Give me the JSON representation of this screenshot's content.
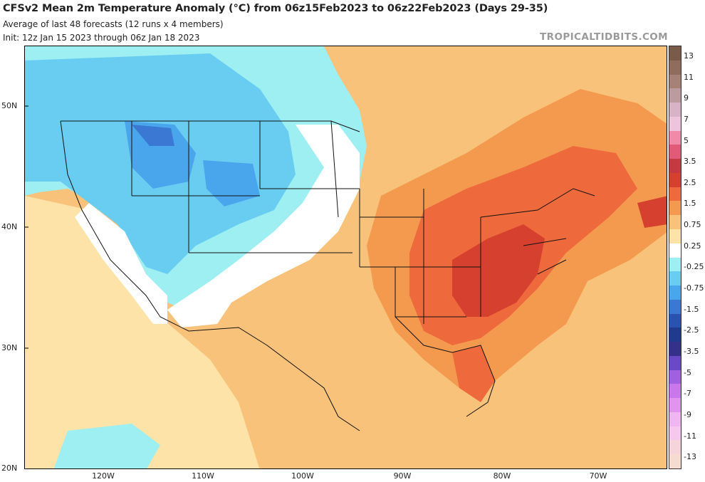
{
  "header": {
    "title": "CFSv2 Mean 2m Temperature Anomaly (°C) from 06z15Feb2023 to 06z22Feb2023 (Days 29-35)",
    "subtitle": "Average of last 48 forecasts (12 runs x 4 members)",
    "init": "Init: 12z Jan 15 2023 through 06z Jan 18 2023",
    "brand": "TROPICALTIDBITS.COM"
  },
  "axes": {
    "lat_labels": [
      "50N",
      "40N",
      "30N",
      "20N"
    ],
    "lon_labels": [
      "120W",
      "110W",
      "100W",
      "90W",
      "80W",
      "70W"
    ]
  },
  "colorbar": {
    "labels": [
      "13",
      "11",
      "9",
      "7",
      "5",
      "3.5",
      "2.5",
      "1.5",
      "0.75",
      "0.25",
      "-0.25",
      "-0.75",
      "-1.5",
      "-2.5",
      "-3.5",
      "-5",
      "-7",
      "-9",
      "-11",
      "-13"
    ],
    "colors": [
      "#7a5a48",
      "#8f6c5c",
      "#a68276",
      "#bb9aa0",
      "#d8b3c8",
      "#eec4dc",
      "#f08aa8",
      "#e15a78",
      "#c53a40",
      "#d6402e",
      "#ee6a3c",
      "#f49a4e",
      "#f8c27a",
      "#fde3a8",
      "#ffffff",
      "#9eeff2",
      "#68cdf0",
      "#4aa6ec",
      "#3a78d4",
      "#2a52b0",
      "#203a8e",
      "#35308a",
      "#6a48c8",
      "#a060e0",
      "#c878ea",
      "#e094ee",
      "#f0b6f2",
      "#f6c8ee",
      "#f6d4dc",
      "#f6dcd0"
    ]
  },
  "palette": {
    "ocean_bg": "#fbd49a",
    "cold_1": "#9eeff2",
    "cold_2": "#68cdf0",
    "cold_3": "#4aa6ec",
    "cold_4": "#3a78d4",
    "warm_1": "#fde3a8",
    "warm_2": "#f8c27a",
    "warm_3": "#f49a4e",
    "warm_4": "#ee6a3c",
    "warm_5": "#d6402e",
    "neutral": "#ffffff"
  }
}
